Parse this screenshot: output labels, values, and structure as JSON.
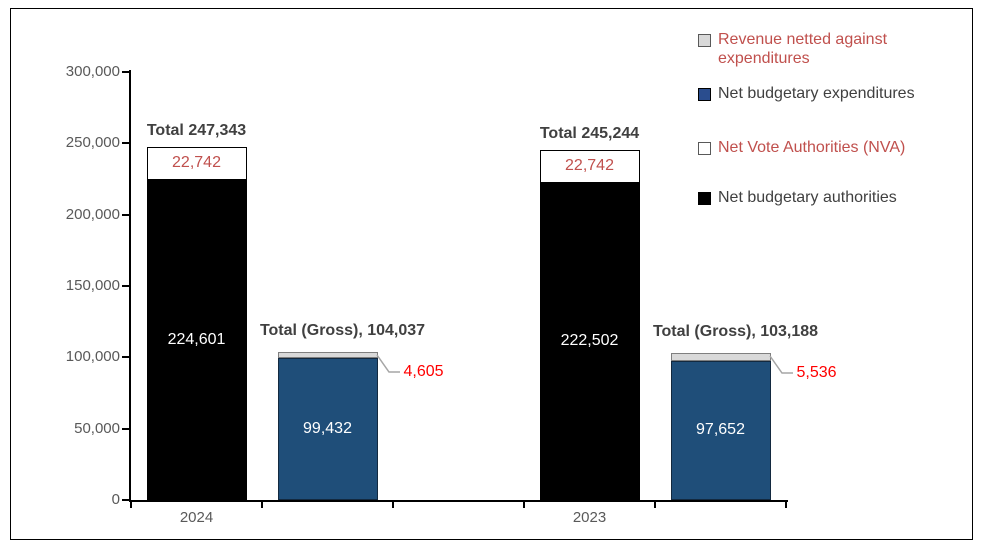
{
  "figure": {
    "background": "#ffffff",
    "border_color": "#000000"
  },
  "axes": {
    "label_color": "#595959",
    "axis_color": "#000000",
    "y_ticks": [
      {
        "value": 0,
        "label": "0"
      },
      {
        "value": 50000,
        "label": "50,000"
      },
      {
        "value": 100000,
        "label": "100,000"
      },
      {
        "value": 150000,
        "label": "150,000"
      },
      {
        "value": 200000,
        "label": "200,000"
      },
      {
        "value": 250000,
        "label": "250,000"
      },
      {
        "value": 300000,
        "label": "300,000"
      }
    ]
  },
  "legend": {
    "items": [
      {
        "label": "Revenue netted against expenditures",
        "swatch_color": "#d9d9d9",
        "swatch_border": "#595959",
        "text_color": "#c0504d"
      },
      {
        "label": "Net budgetary expenditures",
        "swatch_color": "#2a4d8e",
        "swatch_border": "#000000",
        "text_color": "#404040"
      },
      {
        "label": "Net Vote Authorities (NVA)",
        "swatch_color": "#ffffff",
        "swatch_border": "#595959",
        "text_color": "#c0504d"
      },
      {
        "label": "Net budgetary authorities",
        "swatch_color": "#000000",
        "swatch_border": "#000000",
        "text_color": "#404040"
      }
    ]
  },
  "chart_data": {
    "type": "bar",
    "stacked": true,
    "grid": false,
    "legend_position": "top-right",
    "title": "",
    "xlabel": "",
    "ylabel": "",
    "ylim": [
      0,
      300000
    ],
    "categories": [
      "2024",
      "2023"
    ],
    "series": [
      {
        "name": "Net budgetary authorities",
        "values": [
          224601,
          222502
        ]
      },
      {
        "name": "Net Vote Authorities (NVA)",
        "values": [
          22742,
          22742
        ]
      },
      {
        "name": "Net budgetary expenditures",
        "values": [
          99432,
          97652
        ]
      },
      {
        "name": "Revenue netted against expenditures",
        "values": [
          4605,
          5536
        ]
      }
    ],
    "callout_leader_color": "#a6a6a6",
    "groups": [
      {
        "category": "2024",
        "bars": [
          {
            "name": "authorities-2024",
            "total_label": "Total 247,343",
            "segments": [
              {
                "series": "Net budgetary authorities",
                "value": 224601,
                "label": "224,601",
                "color": "#000000",
                "border": "#000000",
                "label_color": "#ffffff"
              },
              {
                "series": "Net Vote Authorities (NVA)",
                "value": 22742,
                "label": "22,742",
                "color": "#ffffff",
                "border": "#000000",
                "label_color": "#c0504d"
              }
            ]
          },
          {
            "name": "expenditures-2024",
            "total_label": "Total (Gross), 104,037",
            "segments": [
              {
                "series": "Net budgetary expenditures",
                "value": 99432,
                "label": "99,432",
                "color": "#1f4e79",
                "border": "#13293f",
                "label_color": "#ffffff"
              },
              {
                "series": "Revenue netted against expenditures",
                "value": 4605,
                "label": "4,605",
                "color": "#d9d9d9",
                "border": "#7f7f7f",
                "label_color": "#ff0000",
                "callout": true
              }
            ]
          }
        ]
      },
      {
        "category": "2023",
        "bars": [
          {
            "name": "authorities-2023",
            "total_label": "Total 245,244",
            "segments": [
              {
                "series": "Net budgetary authorities",
                "value": 222502,
                "label": "222,502",
                "color": "#000000",
                "border": "#000000",
                "label_color": "#ffffff"
              },
              {
                "series": "Net Vote Authorities (NVA)",
                "value": 22742,
                "label": "22,742",
                "color": "#ffffff",
                "border": "#000000",
                "label_color": "#c0504d"
              }
            ]
          },
          {
            "name": "expenditures-2023",
            "total_label": "Total (Gross), 103,188",
            "segments": [
              {
                "series": "Net budgetary expenditures",
                "value": 97652,
                "label": "97,652",
                "color": "#1f4e79",
                "border": "#13293f",
                "label_color": "#ffffff"
              },
              {
                "series": "Revenue netted against expenditures",
                "value": 5536,
                "label": "5,536",
                "color": "#d9d9d9",
                "border": "#7f7f7f",
                "label_color": "#ff0000",
                "callout": true
              }
            ]
          }
        ]
      }
    ]
  }
}
